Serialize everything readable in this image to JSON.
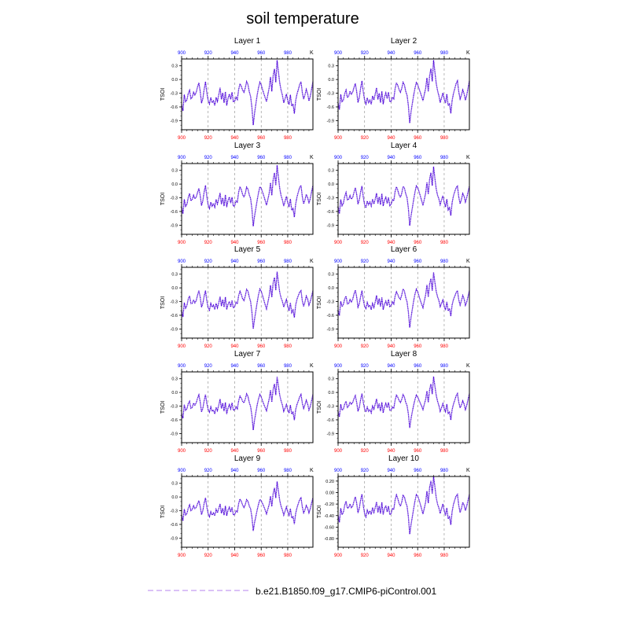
{
  "figure": {
    "title": "soil temperature",
    "legend_label": "b.e21.B1850.f09_g17.CMIP6-piControl.001",
    "unit": "K",
    "line_color": "#4a00d8",
    "legend_line_color": "#c49cf2",
    "top_tick_color": "#0000ff",
    "bottom_tick_color": "#ff0000"
  },
  "chart_data": [
    {
      "type": "line",
      "title": "Layer 1",
      "ylabel": "TSOI",
      "x_unit": "K",
      "xlim": [
        900,
        999
      ],
      "ylim": [
        -1.1,
        0.45
      ],
      "xticks": [
        900,
        920,
        940,
        960,
        980
      ],
      "yticks": [
        -0.9,
        -0.6,
        -0.3,
        0.0,
        0.3
      ],
      "ytick_labels": [
        "-0.9",
        "-0.6",
        "-0.3",
        "0.0",
        "0.3"
      ],
      "series_profile": 0
    },
    {
      "type": "line",
      "title": "Layer 2",
      "ylabel": "TSOI",
      "x_unit": "K",
      "xlim": [
        900,
        999
      ],
      "ylim": [
        -1.1,
        0.45
      ],
      "xticks": [
        900,
        920,
        940,
        960,
        980
      ],
      "yticks": [
        -0.9,
        -0.6,
        -0.3,
        0.0,
        0.3
      ],
      "ytick_labels": [
        "-0.9",
        "-0.6",
        "-0.3",
        "0.0",
        "0.3"
      ],
      "series_profile": 1
    },
    {
      "type": "line",
      "title": "Layer 3",
      "ylabel": "TSOI",
      "x_unit": "K",
      "xlim": [
        900,
        999
      ],
      "ylim": [
        -1.1,
        0.45
      ],
      "xticks": [
        900,
        920,
        940,
        960,
        980
      ],
      "yticks": [
        -0.9,
        -0.6,
        -0.3,
        0.0,
        0.3
      ],
      "ytick_labels": [
        "-0.9",
        "-0.6",
        "-0.3",
        "0.0",
        "0.3"
      ],
      "series_profile": 2
    },
    {
      "type": "line",
      "title": "Layer 4",
      "ylabel": "TSOI",
      "x_unit": "K",
      "xlim": [
        900,
        999
      ],
      "ylim": [
        -1.1,
        0.45
      ],
      "xticks": [
        900,
        920,
        940,
        960,
        980
      ],
      "yticks": [
        -0.9,
        -0.6,
        -0.3,
        0.0,
        0.3
      ],
      "ytick_labels": [
        "-0.9",
        "-0.6",
        "-0.3",
        "0.0",
        "0.3"
      ],
      "series_profile": 3
    },
    {
      "type": "line",
      "title": "Layer 5",
      "ylabel": "TSOI",
      "x_unit": "K",
      "xlim": [
        900,
        999
      ],
      "ylim": [
        -1.1,
        0.45
      ],
      "xticks": [
        900,
        920,
        940,
        960,
        980
      ],
      "yticks": [
        -0.9,
        -0.6,
        -0.3,
        0.0,
        0.3
      ],
      "ytick_labels": [
        "-0.9",
        "-0.6",
        "-0.3",
        "0.0",
        "0.3"
      ],
      "series_profile": 4
    },
    {
      "type": "line",
      "title": "Layer 6",
      "ylabel": "TSOI",
      "x_unit": "K",
      "xlim": [
        900,
        999
      ],
      "ylim": [
        -1.1,
        0.45
      ],
      "xticks": [
        900,
        920,
        940,
        960,
        980
      ],
      "yticks": [
        -0.9,
        -0.6,
        -0.3,
        0.0,
        0.3
      ],
      "ytick_labels": [
        "-0.9",
        "-0.6",
        "-0.3",
        "0.0",
        "0.3"
      ],
      "series_profile": 5
    },
    {
      "type": "line",
      "title": "Layer 7",
      "ylabel": "TSOI",
      "x_unit": "K",
      "xlim": [
        900,
        999
      ],
      "ylim": [
        -1.1,
        0.45
      ],
      "xticks": [
        900,
        920,
        940,
        960,
        980
      ],
      "yticks": [
        -0.9,
        -0.6,
        -0.3,
        0.0,
        0.3
      ],
      "ytick_labels": [
        "-0.9",
        "-0.6",
        "-0.3",
        "0.0",
        "0.3"
      ],
      "series_profile": 6
    },
    {
      "type": "line",
      "title": "Layer 8",
      "ylabel": "TSOI",
      "x_unit": "K",
      "xlim": [
        900,
        999
      ],
      "ylim": [
        -1.1,
        0.45
      ],
      "xticks": [
        900,
        920,
        940,
        960,
        980
      ],
      "yticks": [
        -0.9,
        -0.6,
        -0.3,
        0.0,
        0.3
      ],
      "ytick_labels": [
        "-0.9",
        "-0.6",
        "-0.3",
        "0.0",
        "0.3"
      ],
      "series_profile": 7
    },
    {
      "type": "line",
      "title": "Layer 9",
      "ylabel": "TSOI",
      "x_unit": "K",
      "xlim": [
        900,
        999
      ],
      "ylim": [
        -1.1,
        0.45
      ],
      "xticks": [
        900,
        920,
        940,
        960,
        980
      ],
      "yticks": [
        -0.9,
        -0.6,
        -0.3,
        0.0,
        0.3
      ],
      "ytick_labels": [
        "-0.9",
        "-0.6",
        "-0.3",
        "0.0",
        "0.3"
      ],
      "series_profile": 8
    },
    {
      "type": "line",
      "title": "Layer 10",
      "ylabel": "TSOI",
      "x_unit": "K",
      "xlim": [
        900,
        999
      ],
      "ylim": [
        -0.95,
        0.28
      ],
      "xticks": [
        900,
        920,
        940,
        960,
        980
      ],
      "yticks": [
        -0.8,
        -0.6,
        -0.4,
        -0.2,
        0.0,
        0.2
      ],
      "ytick_labels": [
        "-0.80",
        "-0.60",
        "-0.40",
        "-0.20",
        "0.00",
        "0.20"
      ],
      "series_profile": 9
    }
  ],
  "base_series": {
    "x_start": 900,
    "x_step": 1,
    "values": [
      -0.55,
      -0.7,
      -0.35,
      -0.5,
      -0.45,
      -0.3,
      -0.22,
      -0.4,
      -0.38,
      -0.28,
      -0.35,
      -0.3,
      -0.18,
      -0.08,
      -0.25,
      -0.5,
      -0.4,
      -0.2,
      -0.05,
      -0.3,
      -0.48,
      -0.55,
      -0.4,
      -0.5,
      -0.45,
      -0.55,
      -0.38,
      -0.48,
      -0.35,
      -0.2,
      -0.45,
      -0.3,
      -0.5,
      -0.25,
      -0.55,
      -0.4,
      -0.32,
      -0.45,
      -0.3,
      -0.5,
      -0.48,
      -0.38,
      -0.42,
      -0.2,
      -0.08,
      -0.15,
      -0.25,
      -0.3,
      -0.2,
      -0.05,
      -0.1,
      -0.25,
      -0.35,
      -0.6,
      -1.0,
      -0.75,
      -0.55,
      -0.35,
      -0.18,
      -0.05,
      -0.1,
      -0.2,
      -0.3,
      -0.4,
      -0.5,
      -0.35,
      -0.2,
      0.05,
      -0.25,
      0.1,
      0.25,
      -0.05,
      0.42,
      0.15,
      -0.1,
      -0.25,
      -0.35,
      -0.5,
      -0.4,
      -0.3,
      -0.45,
      -0.55,
      -0.35,
      -0.6,
      -0.55,
      -0.75,
      -0.45,
      -0.3,
      -0.2,
      -0.1,
      -0.05,
      -0.3,
      -0.45,
      -0.35,
      -0.22,
      -0.3,
      -0.45,
      -0.35,
      -0.2,
      -0.05
    ]
  }
}
